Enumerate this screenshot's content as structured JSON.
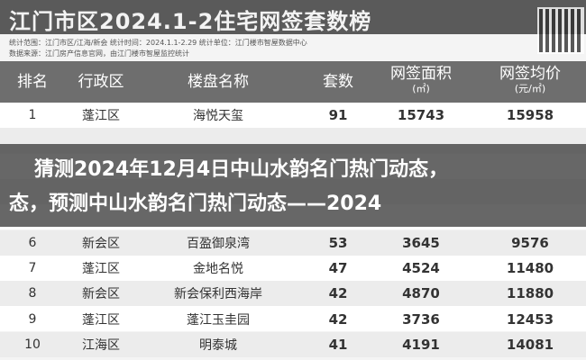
{
  "header": {
    "title": "江门市区2024.1-2住宅网签套数榜",
    "subtitle_lines": [
      "统计范围：江门市区/江海/新会  统计时间：2024.1.1-2.29  统计单位：江门楼市智屋数据中心",
      "数据来源：江门房产信息官网，由江门楼市智屋监控统计"
    ]
  },
  "table": {
    "columns": [
      {
        "label": "排名"
      },
      {
        "label": "行政区"
      },
      {
        "label": "楼盘名称"
      },
      {
        "label": "套数"
      },
      {
        "label": "网签面积",
        "unit": "(㎡)"
      },
      {
        "label": "网签均价",
        "unit": "(元/㎡)"
      }
    ],
    "rows": [
      {
        "rank": 1,
        "cells": [
          "蓬江区",
          "海悦天玺",
          91,
          15743,
          15958
        ]
      },
      {
        "rank": 6,
        "cells": [
          "新会区",
          "百盈御泉湾",
          53,
          3645,
          9576
        ]
      },
      {
        "rank": 7,
        "cells": [
          "蓬江区",
          "金地名悦",
          47,
          4524,
          11480
        ]
      },
      {
        "rank": 8,
        "cells": [
          "新会区",
          "新会保利西海岸",
          42,
          4870,
          11880
        ]
      },
      {
        "rank": 9,
        "cells": [
          "蓬江区",
          "蓬江玉圭园",
          42,
          3736,
          12453
        ]
      },
      {
        "rank": 10,
        "cells": [
          "江海区",
          "明泰城",
          41,
          4191,
          14081
        ]
      }
    ]
  },
  "overlay": {
    "lines": [
      "猜测2024年12月4日中山水韵名门热门动态，",
      "态，预测中山水韵名门热门动态——2024"
    ]
  }
}
